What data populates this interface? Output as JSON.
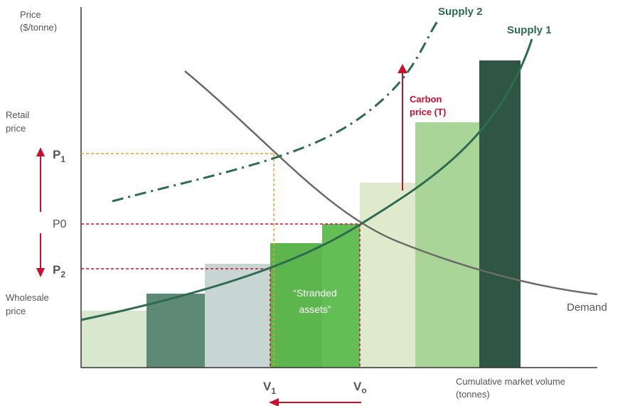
{
  "axes": {
    "y_label_line1": "Price",
    "y_label_line2": "($/tonne)",
    "x_label_line1": "Cumulative market volume",
    "x_label_line2": "(tonnes)"
  },
  "side_labels": {
    "retail_line1": "Retail",
    "retail_line2": "price",
    "wholesale_line1": "Wholesale",
    "wholesale_line2": "price"
  },
  "price_levels": {
    "p1_main": "P",
    "p1_sub": "1",
    "p0": "P0",
    "p2_main": "P",
    "p2_sub": "2"
  },
  "volume_levels": {
    "v1_main": "V",
    "v1_sub": "1",
    "v0_main": "V",
    "v0_sub": "o"
  },
  "curves": {
    "supply1": "Supply 1",
    "supply2": "Supply 2",
    "demand": "Demand"
  },
  "annotations": {
    "carbon_line1": "Carbon",
    "carbon_line2": "price (T)",
    "stranded_line1": "“Stranded",
    "stranded_line2": "assets”"
  },
  "colors": {
    "axis": "#333333",
    "supply": "#2e6b50",
    "demand": "#6b6b66",
    "red": "#c8102e",
    "orange": "#f0a030",
    "bar_pale": "#d7e8cf",
    "bar_dark_teal": "#5e8a75",
    "bar_grey": "#c7d6d2",
    "bar_green": "#5cb54d",
    "bar_green_bright": "#63bf55",
    "bar_cream": "#dfe9cc",
    "bar_light_green": "#a9d698",
    "bar_darkest": "#2f5645"
  }
}
